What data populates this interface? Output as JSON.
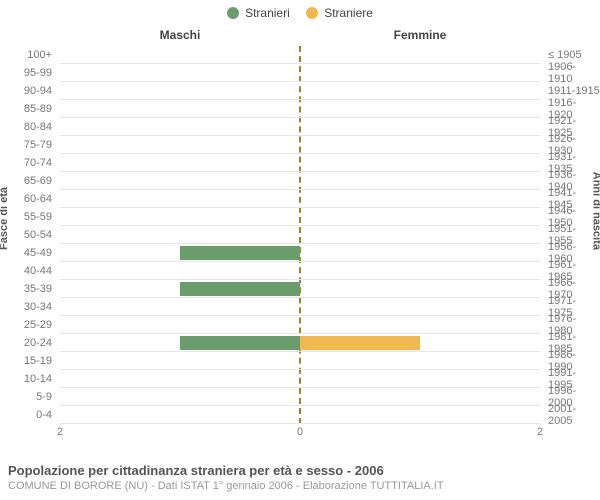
{
  "legend": {
    "items": [
      {
        "label": "Stranieri",
        "color": "#6b9c6b"
      },
      {
        "label": "Straniere",
        "color": "#f0b84e"
      }
    ]
  },
  "columns": {
    "left": "Maschi",
    "right": "Femmine"
  },
  "axes": {
    "left_label": "Fasce di età",
    "right_label": "Anni di nascita",
    "x_max": 2,
    "x_ticks_left": [
      "2",
      "0"
    ],
    "x_ticks_right": [
      "0",
      "2"
    ]
  },
  "colors": {
    "male_bar": "#6b9c6b",
    "female_bar": "#f0b84e",
    "grid": "#e6e6e6",
    "center_line": "#8a8a3a",
    "background": "#ffffff"
  },
  "rows": [
    {
      "age": "100+",
      "birth": "≤ 1905",
      "m": 0,
      "f": 0
    },
    {
      "age": "95-99",
      "birth": "1906-1910",
      "m": 0,
      "f": 0
    },
    {
      "age": "90-94",
      "birth": "1911-1915",
      "m": 0,
      "f": 0
    },
    {
      "age": "85-89",
      "birth": "1916-1920",
      "m": 0,
      "f": 0
    },
    {
      "age": "80-84",
      "birth": "1921-1925",
      "m": 0,
      "f": 0
    },
    {
      "age": "75-79",
      "birth": "1926-1930",
      "m": 0,
      "f": 0
    },
    {
      "age": "70-74",
      "birth": "1931-1935",
      "m": 0,
      "f": 0
    },
    {
      "age": "65-69",
      "birth": "1936-1940",
      "m": 0,
      "f": 0
    },
    {
      "age": "60-64",
      "birth": "1941-1945",
      "m": 0,
      "f": 0
    },
    {
      "age": "55-59",
      "birth": "1946-1950",
      "m": 0,
      "f": 0
    },
    {
      "age": "50-54",
      "birth": "1951-1955",
      "m": 0,
      "f": 0
    },
    {
      "age": "45-49",
      "birth": "1956-1960",
      "m": 1,
      "f": 0
    },
    {
      "age": "40-44",
      "birth": "1961-1965",
      "m": 0,
      "f": 0
    },
    {
      "age": "35-39",
      "birth": "1966-1970",
      "m": 1,
      "f": 0
    },
    {
      "age": "30-34",
      "birth": "1971-1975",
      "m": 0,
      "f": 0
    },
    {
      "age": "25-29",
      "birth": "1976-1980",
      "m": 0,
      "f": 0
    },
    {
      "age": "20-24",
      "birth": "1981-1985",
      "m": 1,
      "f": 1
    },
    {
      "age": "15-19",
      "birth": "1986-1990",
      "m": 0,
      "f": 0
    },
    {
      "age": "10-14",
      "birth": "1991-1995",
      "m": 0,
      "f": 0
    },
    {
      "age": "5-9",
      "birth": "1996-2000",
      "m": 0,
      "f": 0
    },
    {
      "age": "0-4",
      "birth": "2001-2005",
      "m": 0,
      "f": 0
    }
  ],
  "footer": {
    "title": "Popolazione per cittadinanza straniera per età e sesso - 2006",
    "subtitle": "COMUNE DI BORORE (NU) - Dati ISTAT 1° gennaio 2006 - Elaborazione TUTTITALIA.IT"
  }
}
